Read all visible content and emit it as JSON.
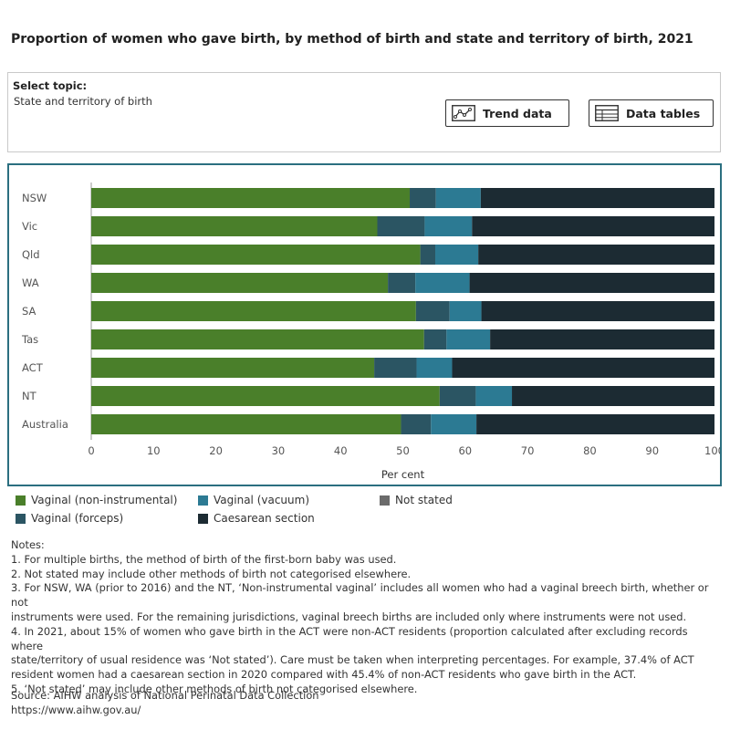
{
  "title": "Proportion of women who gave birth, by method of birth and state and territory of birth, 2021",
  "topic": {
    "label": "Select topic:",
    "value": "State and territory of birth"
  },
  "buttons": {
    "trend_label": "Trend data",
    "trend_icon": "line-chart-icon",
    "tables_label": "Data tables",
    "tables_icon": "table-icon"
  },
  "chart_data": {
    "type": "bar",
    "orientation": "horizontal",
    "stacked": true,
    "categories": [
      "NSW",
      "Vic",
      "Qld",
      "WA",
      "SA",
      "Tas",
      "ACT",
      "NT",
      "Australia"
    ],
    "series": [
      {
        "name": "Vaginal (non-instrumental)",
        "color": "#4a7f2a",
        "values": [
          51.1,
          45.9,
          52.8,
          47.6,
          52.1,
          53.4,
          45.4,
          55.9,
          49.7
        ]
      },
      {
        "name": "Vaginal (forceps)",
        "color": "#2b5563",
        "values": [
          4.2,
          7.6,
          2.4,
          4.4,
          5.4,
          3.6,
          6.8,
          5.8,
          4.8
        ]
      },
      {
        "name": "Vaginal (vacuum)",
        "color": "#2c7a93",
        "values": [
          7.2,
          7.6,
          6.9,
          8.7,
          5.1,
          7.0,
          5.7,
          5.8,
          7.3
        ]
      },
      {
        "name": "Not stated",
        "color": "#6b6b6b",
        "values": [
          0.0,
          0.0,
          0.0,
          0.0,
          0.0,
          0.0,
          0.0,
          0.0,
          0.0
        ]
      },
      {
        "name": "Caesarean section",
        "color": "#1c2b33",
        "values": [
          37.5,
          38.9,
          37.9,
          39.3,
          37.4,
          36.0,
          42.1,
          32.5,
          38.2
        ]
      }
    ],
    "xlabel": "Per cent",
    "ylabel": "",
    "xlim": [
      0,
      100
    ],
    "xticks": [
      0,
      10,
      20,
      30,
      40,
      50,
      60,
      70,
      80,
      90,
      100
    ],
    "grid": false,
    "legend_position": "bottom-left"
  },
  "legend": [
    "Vaginal (non-instrumental)",
    "Vaginal (vacuum)",
    "Not stated",
    "Vaginal (forceps)",
    "Caesarean section"
  ],
  "notes": {
    "heading": "Notes:",
    "lines": [
      "1. For multiple births, the method of birth of the first-born baby was used.",
      "2. Not stated may include other methods of birth not categorised elsewhere.",
      "3. For NSW, WA (prior to 2016) and the NT, ‘Non-instrumental vaginal’ includes all women who had a vaginal breech birth, whether or not",
      "instruments were used. For the remaining jurisdictions, vaginal breech births are included only where instruments were not used.",
      "4. In 2021, about 15% of women who gave birth in the ACT were non-ACT residents (proportion calculated after excluding records where",
      "state/territory of usual residence was ‘Not stated’). Care must be taken when interpreting percentages. For example, 37.4% of ACT",
      "resident women had a caesarean section in 2020 compared with 45.4% of non-ACT residents who gave birth in the ACT.",
      "5. ‘Not stated’ may include other methods of birth not categorised elsewhere."
    ]
  },
  "source": {
    "line1": "Source: AIHW analysis of National Perinatal Data Collection",
    "line2": "https://www.aihw.gov.au/"
  }
}
